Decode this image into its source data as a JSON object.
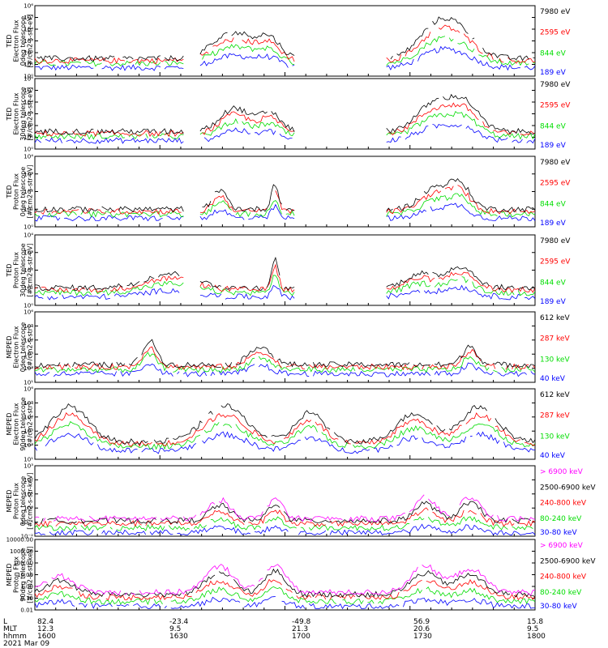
{
  "footer": {
    "labels": [
      "L",
      "MLT",
      "hhmm",
      "2021 Mar 09"
    ],
    "columns": [
      {
        "L": "82.4",
        "MLT": "12.3",
        "hhmm": "1600"
      },
      {
        "L": "-23.4",
        "MLT": "9.5",
        "hhmm": "1630"
      },
      {
        "L": "-49.8",
        "MLT": "21.3",
        "hhmm": "1700"
      },
      {
        "L": "56.9",
        "MLT": "20.6",
        "hhmm": "1730"
      },
      {
        "L": "15.8",
        "MLT": "9.5",
        "hhmm": "1800"
      }
    ]
  },
  "colors": {
    "black": "#000000",
    "red": "#ff0000",
    "green": "#00dd00",
    "blue": "#0000ff",
    "magenta": "#ff00ff"
  },
  "chart_data": [
    {
      "type": "line",
      "ylabel": [
        "TED",
        "Electron Flux",
        "0deg telescope",
        "[#/cm2-s-str-eV]"
      ],
      "yscale": "log",
      "ylim": [
        1,
        1000000
      ],
      "tick_labels": [
        "10⁰",
        "10¹",
        "10²",
        "10³",
        "10⁴",
        "10⁵",
        "10⁶"
      ],
      "series": [
        {
          "name": "7980 eV",
          "color": "#000000"
        },
        {
          "name": "2595 eV",
          "color": "#ff0000"
        },
        {
          "name": "844 eV",
          "color": "#00dd00"
        },
        {
          "name": "189 eV",
          "color": "#0000ff"
        }
      ]
    },
    {
      "type": "line",
      "ylabel": [
        "TED",
        "Electron Flux",
        "30deg telescope",
        "[#/cm2-s-str-eV]"
      ],
      "yscale": "log",
      "ylim": [
        1,
        1000000
      ],
      "tick_labels": [
        "10⁰",
        "10¹",
        "10²",
        "10³",
        "10⁴",
        "10⁵",
        "10⁶"
      ],
      "series": [
        {
          "name": "7980 eV",
          "color": "#000000"
        },
        {
          "name": "2595 eV",
          "color": "#ff0000"
        },
        {
          "name": "844 eV",
          "color": "#00dd00"
        },
        {
          "name": "189 eV",
          "color": "#0000ff"
        }
      ]
    },
    {
      "type": "line",
      "ylabel": [
        "TED",
        "Proton Flux",
        "0deg telescope",
        "[#/cm2-s-str-eV]"
      ],
      "yscale": "log",
      "ylim": [
        1,
        10000
      ],
      "tick_labels": [
        "10⁰",
        "10¹",
        "10²",
        "10³",
        "10⁴"
      ],
      "series": [
        {
          "name": "7980 eV",
          "color": "#000000"
        },
        {
          "name": "2595 eV",
          "color": "#ff0000"
        },
        {
          "name": "844 eV",
          "color": "#00dd00"
        },
        {
          "name": "189 eV",
          "color": "#0000ff"
        }
      ]
    },
    {
      "type": "line",
      "ylabel": [
        "TED",
        "Proton Flux",
        "30deg telescope",
        "[#/cm2-s-str-eV]"
      ],
      "yscale": "log",
      "ylim": [
        1,
        10000
      ],
      "tick_labels": [
        "10⁰",
        "10¹",
        "10²",
        "10³",
        "10⁴"
      ],
      "series": [
        {
          "name": "7980 eV",
          "color": "#000000"
        },
        {
          "name": "2595 eV",
          "color": "#ff0000"
        },
        {
          "name": "844 eV",
          "color": "#00dd00"
        },
        {
          "name": "189 eV",
          "color": "#0000ff"
        }
      ]
    },
    {
      "type": "line",
      "ylabel": [
        "MEPED",
        "Electron Flux",
        "0deg telescope",
        "[#/cm2-s-str]"
      ],
      "yscale": "log",
      "ylim": [
        10,
        1000000
      ],
      "tick_labels": [
        "10¹",
        "10²",
        "10³",
        "10⁴",
        "10⁵",
        "10⁶"
      ],
      "series": [
        {
          "name": "612 keV",
          "color": "#000000"
        },
        {
          "name": "287 keV",
          "color": "#ff0000"
        },
        {
          "name": "130 keV",
          "color": "#00dd00"
        },
        {
          "name": "40 keV",
          "color": "#0000ff"
        }
      ]
    },
    {
      "type": "line",
      "ylabel": [
        "MEPED",
        "Electron Flux",
        "90deg telescope",
        "[#/cm2-s-str]"
      ],
      "yscale": "log",
      "ylim": [
        10,
        1000000
      ],
      "tick_labels": [
        "10¹",
        "10²",
        "10³",
        "10⁴",
        "10⁵",
        "10⁶"
      ],
      "series": [
        {
          "name": "612 keV",
          "color": "#000000"
        },
        {
          "name": "287 keV",
          "color": "#ff0000"
        },
        {
          "name": "130 keV",
          "color": "#00dd00"
        },
        {
          "name": "40 keV",
          "color": "#0000ff"
        }
      ]
    },
    {
      "type": "line",
      "ylabel": [
        "MEPED",
        "Proton Flux",
        "0deg telescope",
        "[#/cm2-s-str-keV]"
      ],
      "yscale": "log",
      "ylim": [
        0.01,
        1000
      ],
      "tick_labels": [
        "10⁻²",
        "10⁻¹",
        "10⁰",
        "10¹",
        "10²",
        "10³"
      ],
      "series": [
        {
          "name": "> 6900 keV",
          "color": "#ff00ff"
        },
        {
          "name": "2500-6900 keV",
          "color": "#000000"
        },
        {
          "name": "240-800 keV",
          "color": "#ff0000"
        },
        {
          "name": "80-240 keV",
          "color": "#00dd00"
        },
        {
          "name": "30-80 keV",
          "color": "#0000ff"
        }
      ]
    },
    {
      "type": "line",
      "ylabel": [
        "MEPED",
        "Proton Flux",
        "90deg telescope",
        "[#/cm2-s-str-keV]"
      ],
      "yscale": "log",
      "ylim": [
        0.01,
        10000
      ],
      "tick_labels": [
        "0.01",
        "0.10",
        "1.00",
        "10.00",
        "100.00",
        "1000.00",
        "10000.00"
      ],
      "series": [
        {
          "name": "> 6900 keV",
          "color": "#ff00ff"
        },
        {
          "name": "2500-6900 keV",
          "color": "#000000"
        },
        {
          "name": "240-800 keV",
          "color": "#ff0000"
        },
        {
          "name": "80-240 keV",
          "color": "#00dd00"
        },
        {
          "name": "30-80 keV",
          "color": "#0000ff"
        }
      ]
    }
  ]
}
